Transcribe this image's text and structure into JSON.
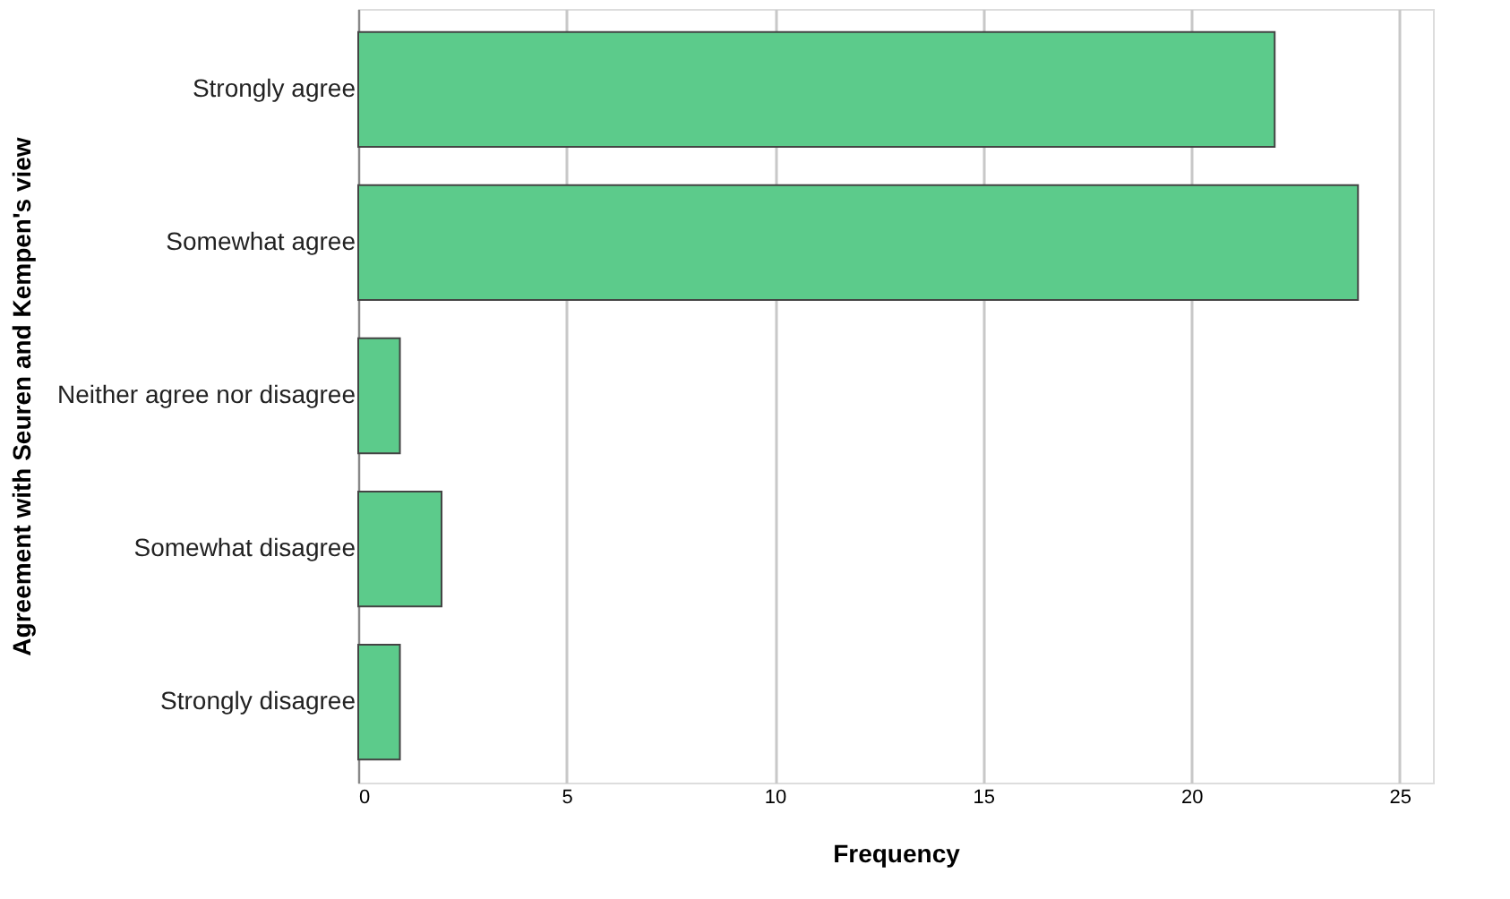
{
  "chart_data": {
    "type": "bar",
    "orientation": "horizontal",
    "xlabel": "Frequency",
    "ylabel": "Agreement with Seuren and Kempen's view",
    "categories": [
      "Strongly agree",
      "Somewhat agree",
      "Neither agree nor disagree",
      "Somewhat disagree",
      "Strongly disagree"
    ],
    "values": [
      22,
      24,
      1,
      2,
      1
    ],
    "color": "#5ccb8b",
    "xlim": [
      0,
      25.8
    ],
    "xticks": [
      0,
      5,
      10,
      15,
      20,
      25
    ],
    "grid": "x"
  }
}
